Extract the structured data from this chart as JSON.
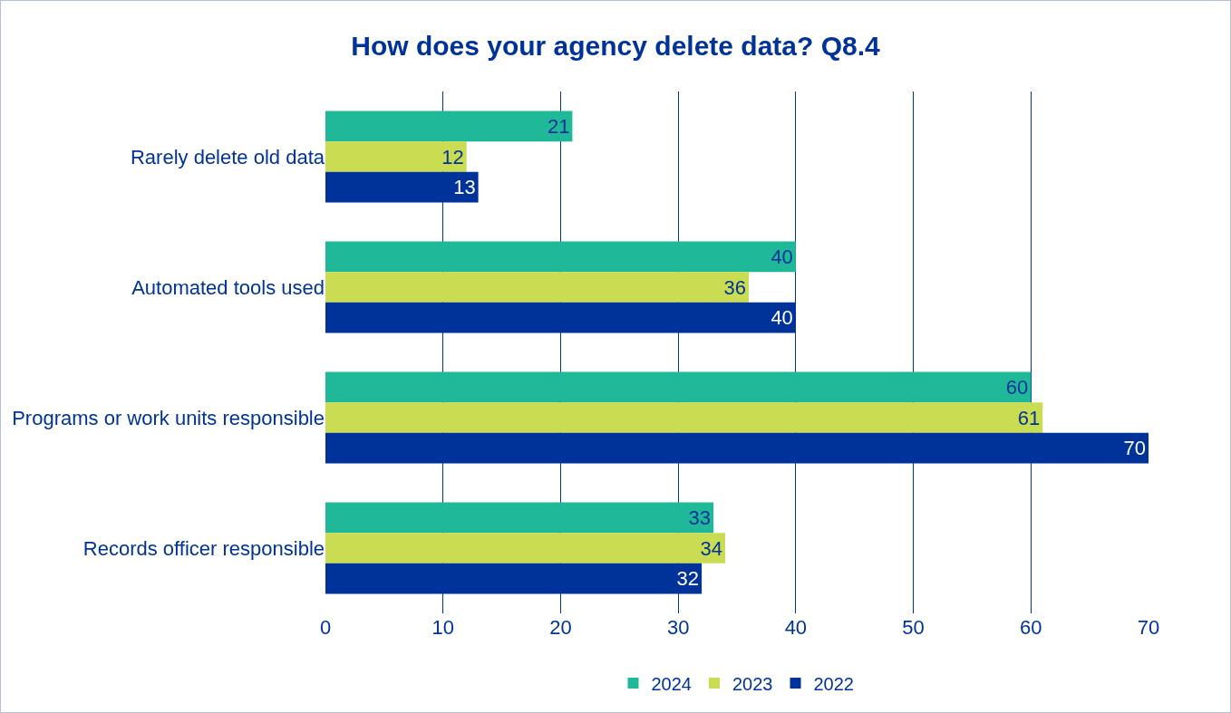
{
  "chart_data": {
    "type": "bar",
    "title": "How does your agency delete data? Q8.4",
    "orientation": "horizontal",
    "categories": [
      "Rarely delete old data",
      "Automated tools used",
      "Programs or work units responsible",
      "Records officer responsible"
    ],
    "series": [
      {
        "name": "2024",
        "color": "#1fb99a",
        "values": [
          21,
          40,
          60,
          33
        ]
      },
      {
        "name": "2023",
        "color": "#c9dc52",
        "values": [
          12,
          36,
          61,
          34
        ]
      },
      {
        "name": "2022",
        "color": "#003399",
        "values": [
          13,
          40,
          70,
          32
        ]
      }
    ],
    "xlim": [
      0,
      70
    ],
    "xticks": [
      0,
      10,
      20,
      30,
      40,
      50,
      60,
      70
    ],
    "grid": "x",
    "legend": "bottom",
    "data_labels": true
  }
}
